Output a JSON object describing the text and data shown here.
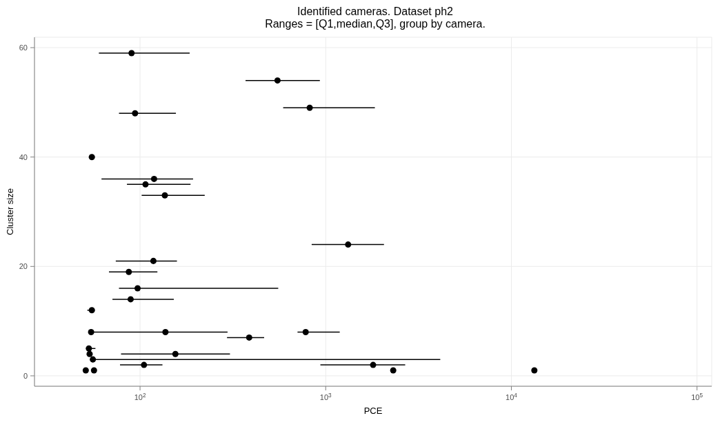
{
  "chart_data": {
    "type": "scatter",
    "title": "Identified cameras. Dataset ph2",
    "subtitle": "Ranges = [Q1,median,Q3], group by camera.",
    "xlabel": "PCE",
    "ylabel": "Cluster size",
    "log": "x",
    "grid": true,
    "marker": "circle",
    "xlim": [
      27,
      120000
    ],
    "xticks": [
      {
        "value": 100,
        "label": "10$^{2}$"
      },
      {
        "value": 1000,
        "label": "10$^{3}$"
      },
      {
        "value": 10000,
        "label": "10$^{4}$"
      },
      {
        "value": 100000,
        "label": "10$^{5}$"
      }
    ],
    "ylim": [
      -1.9,
      61.9
    ],
    "yticks": [
      0,
      20,
      40,
      60
    ],
    "series": [
      {
        "color": "#000000",
        "x": [
          90,
          550,
          820,
          94,
          55,
          119,
          107,
          136,
          1320,
          118,
          87,
          97,
          89,
          55,
          54.5,
          137,
          780,
          387,
          53,
          53.5,
          155,
          55.7,
          105,
          1800,
          51,
          56.5,
          2310,
          13300
        ],
        "values": [
          59,
          54,
          49,
          48,
          40,
          36,
          35,
          33,
          24,
          21,
          19,
          16,
          14,
          12,
          8,
          8,
          8,
          7,
          5,
          4,
          4,
          3,
          2,
          2,
          1,
          1,
          1,
          1
        ],
        "xerrors": [
          [
            60,
            185
          ],
          [
            370,
            930
          ],
          [
            590,
            1840
          ],
          [
            77,
            156
          ],
          [
            53,
            57
          ],
          [
            62,
            193
          ],
          [
            85,
            187
          ],
          [
            102,
            223
          ],
          [
            840,
            2060
          ],
          [
            74,
            158
          ],
          [
            68,
            124
          ],
          [
            77,
            555
          ],
          [
            71,
            152
          ],
          [
            52,
            57
          ],
          null,
          [
            54.5,
            296
          ],
          [
            705,
            1190
          ],
          [
            294,
            466
          ],
          [
            53,
            57.5
          ],
          null,
          [
            79,
            305
          ],
          [
            55.7,
            4140
          ],
          [
            78,
            132
          ],
          [
            936,
            2680
          ],
          null,
          null,
          null,
          null
        ]
      }
    ]
  }
}
